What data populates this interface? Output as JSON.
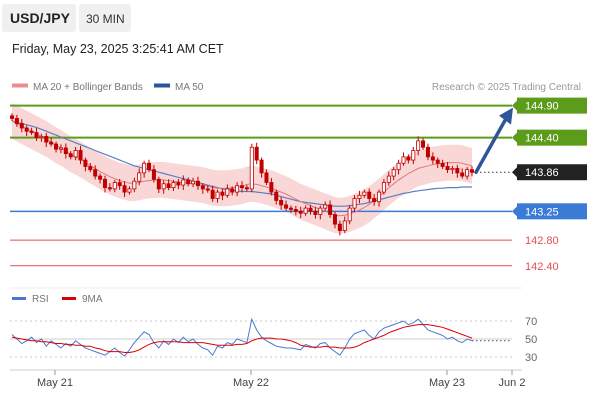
{
  "header": {
    "symbol": "USD/JPY",
    "timeframe": "30 MIN",
    "datetime": "Friday, May 23, 2025 3:25:41 AM CET"
  },
  "legend": {
    "bollinger": {
      "label": "MA 20 + Bollinger Bands",
      "color": "#f08c8c"
    },
    "ma50": {
      "label": "MA 50",
      "color": "#2f5597"
    },
    "copyright": "Research © 2025 Trading Central"
  },
  "rsi_legend": {
    "rsi": {
      "label": "RSI",
      "color": "#4a78d0"
    },
    "ma9": {
      "label": "9MA",
      "color": "#dd0000"
    }
  },
  "colors": {
    "green_level": "#5b9c1a",
    "blue_level": "#3a7bd5",
    "red_level": "#e05050",
    "candle": "#c00000",
    "band_fill": "#f9d3d3",
    "arrow": "#2f5597",
    "last_price_bg": "#222222"
  },
  "chart_data": {
    "type": "candlestick",
    "y_range": [
      142.1,
      145.05
    ],
    "x_labels": [
      "May 21",
      "May 22",
      "May 23",
      "Jun 2"
    ],
    "levels": [
      {
        "value": 144.9,
        "label": "144.90",
        "kind": "resistance"
      },
      {
        "value": 144.4,
        "label": "144.40",
        "kind": "resistance"
      },
      {
        "value": 143.86,
        "label": "143.86",
        "kind": "last"
      },
      {
        "value": 143.25,
        "label": "143.25",
        "kind": "support_major"
      },
      {
        "value": 142.8,
        "label": "142.80",
        "kind": "support"
      },
      {
        "value": 142.4,
        "label": "142.40",
        "kind": "support"
      }
    ],
    "close": [
      144.7,
      144.62,
      144.55,
      144.5,
      144.48,
      144.4,
      144.42,
      144.33,
      144.3,
      144.22,
      144.24,
      144.15,
      144.1,
      144.2,
      144.05,
      143.95,
      143.9,
      143.8,
      143.75,
      143.62,
      143.6,
      143.7,
      143.65,
      143.55,
      143.6,
      143.72,
      143.85,
      144.0,
      143.9,
      143.75,
      143.6,
      143.68,
      143.62,
      143.7,
      143.66,
      143.74,
      143.68,
      143.72,
      143.65,
      143.6,
      143.58,
      143.45,
      143.55,
      143.5,
      143.6,
      143.55,
      143.65,
      143.62,
      143.6,
      144.25,
      144.05,
      143.85,
      143.7,
      143.55,
      143.42,
      143.35,
      143.3,
      143.28,
      143.25,
      143.22,
      143.3,
      143.25,
      143.2,
      143.3,
      143.35,
      143.2,
      143.05,
      142.95,
      143.1,
      143.3,
      143.45,
      143.5,
      143.55,
      143.45,
      143.4,
      143.55,
      143.7,
      143.8,
      143.9,
      144.0,
      144.1,
      144.05,
      144.2,
      144.35,
      144.25,
      144.1,
      144.05,
      144.0,
      143.95,
      143.9,
      143.92,
      143.85,
      143.8,
      143.9,
      143.86
    ],
    "ma20": [
      144.66,
      144.62,
      144.58,
      144.54,
      144.5,
      144.46,
      144.42,
      144.38,
      144.33,
      144.28,
      144.24,
      144.19,
      144.14,
      144.1,
      144.06,
      144.01,
      143.96,
      143.92,
      143.87,
      143.83,
      143.79,
      143.76,
      143.73,
      143.71,
      143.69,
      143.69,
      143.7,
      143.72,
      143.73,
      143.74,
      143.74,
      143.74,
      143.73,
      143.72,
      143.71,
      143.7,
      143.69,
      143.68,
      143.67,
      143.66,
      143.64,
      143.62,
      143.61,
      143.61,
      143.61,
      143.62,
      143.63,
      143.64,
      143.67,
      143.68,
      143.67,
      143.65,
      143.63,
      143.61,
      143.58,
      143.55,
      143.52,
      143.48,
      143.44,
      143.4,
      143.37,
      143.34,
      143.31,
      143.28,
      143.25,
      143.22,
      143.19,
      143.18,
      143.19,
      143.21,
      143.24,
      143.27,
      143.31,
      143.36,
      143.42,
      143.48,
      143.55,
      143.62,
      143.68,
      143.74,
      143.79,
      143.84,
      143.88,
      143.92,
      143.94,
      143.96,
      143.98,
      143.99,
      144.0,
      144.01,
      144.01,
      144.01,
      144.0,
      143.98,
      143.96
    ],
    "ma50": [
      144.66,
      144.64,
      144.62,
      144.6,
      144.58,
      144.56,
      144.53,
      144.5,
      144.47,
      144.44,
      144.41,
      144.38,
      144.35,
      144.32,
      144.29,
      144.26,
      144.23,
      144.2,
      144.17,
      144.14,
      144.11,
      144.08,
      144.05,
      144.02,
      143.99,
      143.96,
      143.94,
      143.92,
      143.9,
      143.88,
      143.86,
      143.84,
      143.82,
      143.8,
      143.78,
      143.76,
      143.74,
      143.72,
      143.7,
      143.68,
      143.66,
      143.64,
      143.62,
      143.6,
      143.59,
      143.58,
      143.57,
      143.56,
      143.56,
      143.56,
      143.55,
      143.54,
      143.53,
      143.52,
      143.5,
      143.48,
      143.46,
      143.44,
      143.42,
      143.4,
      143.39,
      143.38,
      143.37,
      143.36,
      143.35,
      143.34,
      143.33,
      143.33,
      143.33,
      143.34,
      143.35,
      143.36,
      143.37,
      143.39,
      143.41,
      143.43,
      143.45,
      143.47,
      143.49,
      143.51,
      143.53,
      143.54,
      143.56,
      143.57,
      143.58,
      143.59,
      143.6,
      143.61,
      143.61,
      143.62,
      143.62,
      143.62,
      143.63,
      143.63,
      143.63
    ],
    "band_width": 0.28,
    "rsi_axis": {
      "range": [
        20,
        80
      ],
      "ticks": [
        70,
        50,
        30
      ]
    },
    "rsi": [
      55,
      50,
      45,
      48,
      52,
      46,
      50,
      42,
      48,
      44,
      40,
      45,
      42,
      48,
      44,
      40,
      38,
      36,
      34,
      32,
      36,
      40,
      35,
      31,
      38,
      46,
      52,
      58,
      55,
      46,
      40,
      48,
      44,
      50,
      46,
      52,
      47,
      50,
      44,
      40,
      38,
      32,
      42,
      40,
      46,
      44,
      50,
      48,
      46,
      72,
      60,
      52,
      48,
      45,
      42,
      41,
      40,
      40,
      39,
      38,
      44,
      42,
      40,
      45,
      46,
      40,
      36,
      32,
      40,
      50,
      56,
      58,
      60,
      54,
      50,
      58,
      62,
      64,
      66,
      68,
      70,
      66,
      68,
      72,
      66,
      60,
      58,
      56,
      54,
      50,
      52,
      48,
      46,
      50,
      48
    ],
    "rsi_ma9": [
      52,
      51,
      50,
      49,
      48,
      48,
      47,
      47,
      46,
      45,
      45,
      44,
      44,
      43,
      43,
      42,
      42,
      40,
      39,
      37,
      36,
      36,
      36,
      35,
      35,
      36,
      38,
      41,
      44,
      46,
      47,
      47,
      47,
      47,
      47,
      46,
      46,
      46,
      46,
      46,
      45,
      44,
      43,
      43,
      43,
      43,
      44,
      44,
      45,
      48,
      50,
      51,
      51,
      51,
      50,
      50,
      49,
      48,
      46,
      43,
      42,
      41,
      41,
      41,
      42,
      41,
      41,
      40,
      40,
      40,
      41,
      43,
      46,
      48,
      50,
      52,
      54,
      57,
      59,
      61,
      63,
      64,
      65,
      66,
      66,
      66,
      65,
      64,
      63,
      61,
      59,
      57,
      55,
      53,
      51
    ]
  }
}
